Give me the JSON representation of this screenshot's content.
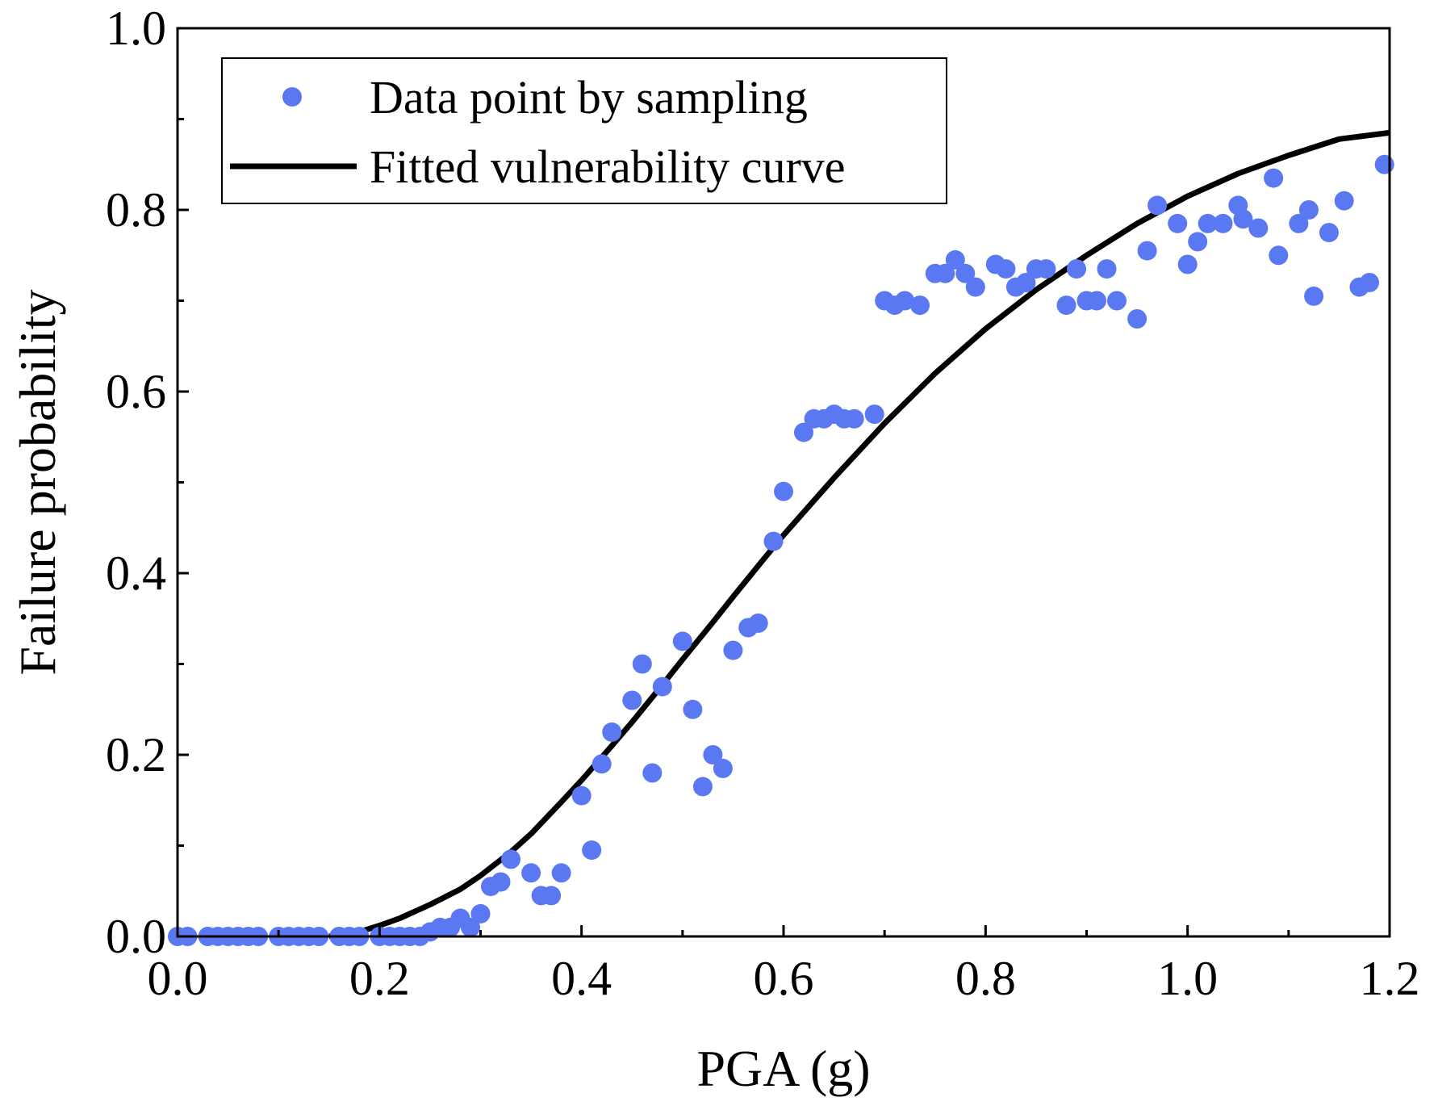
{
  "colors": {
    "points": "#5b78f3",
    "curve": "#000000",
    "axis": "#000000"
  },
  "chart_data": {
    "type": "scatter",
    "title": "",
    "xlabel": "PGA (g)",
    "ylabel": "Failure probability",
    "xlim": [
      0.0,
      1.2
    ],
    "ylim": [
      0.0,
      1.0
    ],
    "x_ticks": [
      0.0,
      0.2,
      0.4,
      0.6,
      0.8,
      1.0,
      1.2
    ],
    "x_tick_labels": [
      "0.0",
      "0.2",
      "0.4",
      "0.6",
      "0.8",
      "1.0",
      "1.2"
    ],
    "y_ticks": [
      0.0,
      0.2,
      0.4,
      0.6,
      0.8,
      1.0
    ],
    "y_tick_labels": [
      "0.0",
      "0.2",
      "0.4",
      "0.6",
      "0.8",
      "1.0"
    ],
    "grid": false,
    "legend_position": "top-left",
    "series": [
      {
        "name": "Data point by sampling",
        "kind": "scatter",
        "points": [
          [
            0.0,
            0.0
          ],
          [
            0.01,
            0.0
          ],
          [
            0.03,
            0.0
          ],
          [
            0.04,
            0.0
          ],
          [
            0.05,
            0.0
          ],
          [
            0.06,
            0.0
          ],
          [
            0.07,
            0.0
          ],
          [
            0.08,
            0.0
          ],
          [
            0.1,
            0.0
          ],
          [
            0.11,
            0.0
          ],
          [
            0.12,
            0.0
          ],
          [
            0.13,
            0.0
          ],
          [
            0.14,
            0.0
          ],
          [
            0.16,
            0.0
          ],
          [
            0.17,
            0.0
          ],
          [
            0.18,
            0.0
          ],
          [
            0.2,
            0.0
          ],
          [
            0.21,
            0.0
          ],
          [
            0.22,
            0.0
          ],
          [
            0.23,
            0.0
          ],
          [
            0.24,
            0.0
          ],
          [
            0.25,
            0.005
          ],
          [
            0.26,
            0.01
          ],
          [
            0.27,
            0.01
          ],
          [
            0.28,
            0.02
          ],
          [
            0.29,
            0.01
          ],
          [
            0.3,
            0.025
          ],
          [
            0.31,
            0.055
          ],
          [
            0.32,
            0.06
          ],
          [
            0.33,
            0.085
          ],
          [
            0.35,
            0.07
          ],
          [
            0.36,
            0.045
          ],
          [
            0.37,
            0.045
          ],
          [
            0.38,
            0.07
          ],
          [
            0.4,
            0.155
          ],
          [
            0.41,
            0.095
          ],
          [
            0.42,
            0.19
          ],
          [
            0.43,
            0.225
          ],
          [
            0.45,
            0.26
          ],
          [
            0.46,
            0.3
          ],
          [
            0.47,
            0.18
          ],
          [
            0.48,
            0.275
          ],
          [
            0.5,
            0.325
          ],
          [
            0.51,
            0.25
          ],
          [
            0.52,
            0.165
          ],
          [
            0.53,
            0.2
          ],
          [
            0.54,
            0.185
          ],
          [
            0.55,
            0.315
          ],
          [
            0.565,
            0.34
          ],
          [
            0.575,
            0.345
          ],
          [
            0.59,
            0.435
          ],
          [
            0.6,
            0.49
          ],
          [
            0.62,
            0.555
          ],
          [
            0.63,
            0.57
          ],
          [
            0.64,
            0.57
          ],
          [
            0.65,
            0.575
          ],
          [
            0.66,
            0.57
          ],
          [
            0.67,
            0.57
          ],
          [
            0.69,
            0.575
          ],
          [
            0.7,
            0.7
          ],
          [
            0.71,
            0.695
          ],
          [
            0.72,
            0.7
          ],
          [
            0.735,
            0.695
          ],
          [
            0.75,
            0.73
          ],
          [
            0.76,
            0.73
          ],
          [
            0.77,
            0.745
          ],
          [
            0.78,
            0.73
          ],
          [
            0.79,
            0.715
          ],
          [
            0.81,
            0.74
          ],
          [
            0.82,
            0.735
          ],
          [
            0.83,
            0.715
          ],
          [
            0.84,
            0.72
          ],
          [
            0.85,
            0.735
          ],
          [
            0.86,
            0.735
          ],
          [
            0.88,
            0.695
          ],
          [
            0.89,
            0.735
          ],
          [
            0.9,
            0.7
          ],
          [
            0.91,
            0.7
          ],
          [
            0.92,
            0.735
          ],
          [
            0.93,
            0.7
          ],
          [
            0.95,
            0.68
          ],
          [
            0.96,
            0.755
          ],
          [
            0.97,
            0.805
          ],
          [
            0.99,
            0.785
          ],
          [
            1.0,
            0.74
          ],
          [
            1.01,
            0.765
          ],
          [
            1.02,
            0.785
          ],
          [
            1.035,
            0.785
          ],
          [
            1.05,
            0.805
          ],
          [
            1.055,
            0.79
          ],
          [
            1.07,
            0.78
          ],
          [
            1.085,
            0.835
          ],
          [
            1.09,
            0.75
          ],
          [
            1.11,
            0.785
          ],
          [
            1.12,
            0.8
          ],
          [
            1.125,
            0.705
          ],
          [
            1.14,
            0.775
          ],
          [
            1.155,
            0.81
          ],
          [
            1.17,
            0.715
          ],
          [
            1.18,
            0.72
          ],
          [
            1.195,
            0.85
          ]
        ]
      },
      {
        "name": "Fitted vulnerability curve",
        "kind": "line",
        "x": [
          0.15,
          0.18,
          0.2,
          0.22,
          0.25,
          0.28,
          0.3,
          0.33,
          0.35,
          0.38,
          0.4,
          0.43,
          0.45,
          0.48,
          0.5,
          0.53,
          0.55,
          0.58,
          0.6,
          0.65,
          0.7,
          0.75,
          0.8,
          0.85,
          0.9,
          0.95,
          1.0,
          1.05,
          1.1,
          1.15,
          1.2
        ],
        "y": [
          0.0,
          0.005,
          0.012,
          0.02,
          0.035,
          0.052,
          0.067,
          0.093,
          0.113,
          0.148,
          0.172,
          0.21,
          0.236,
          0.277,
          0.305,
          0.346,
          0.374,
          0.415,
          0.442,
          0.505,
          0.565,
          0.62,
          0.669,
          0.712,
          0.75,
          0.785,
          0.815,
          0.84,
          0.86,
          0.878,
          0.885
        ]
      }
    ]
  }
}
